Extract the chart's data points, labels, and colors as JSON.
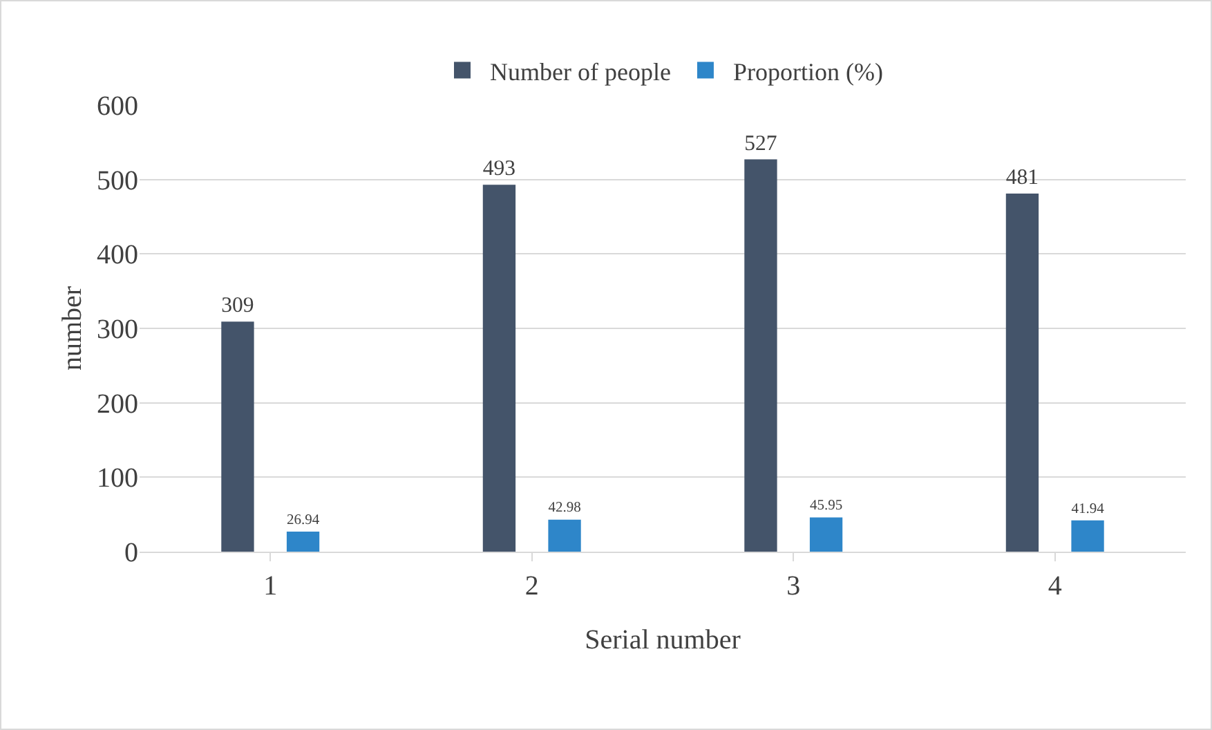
{
  "chart_data": {
    "type": "bar",
    "categories": [
      "1",
      "2",
      "3",
      "4"
    ],
    "xlabel": "Serial number",
    "ylabel": "number",
    "series": [
      {
        "name": "Number of people",
        "color": "#44546a",
        "values": [
          309,
          493,
          527,
          481
        ]
      },
      {
        "name": "Proportion (%)",
        "color": "#2e86c9",
        "values": [
          26.94,
          42.98,
          45.95,
          41.94
        ]
      }
    ],
    "ylim": [
      0,
      600
    ],
    "yticks": [
      0,
      100,
      200,
      300,
      400,
      500,
      600
    ],
    "grid": "y",
    "legend": "top",
    "data_labels": true
  }
}
